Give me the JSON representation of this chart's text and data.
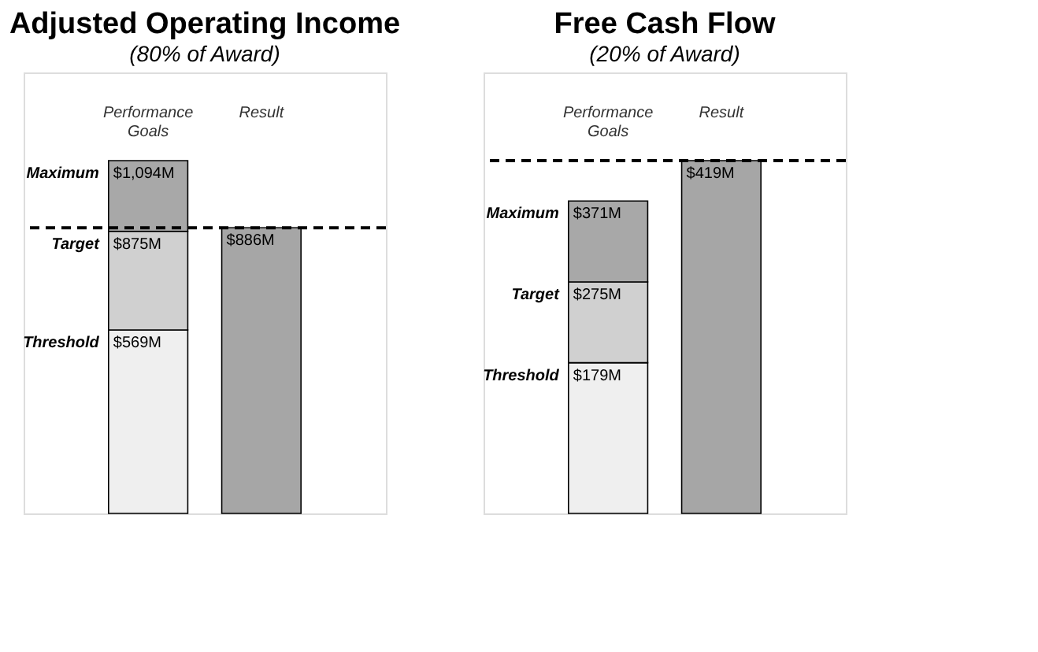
{
  "chart_data": [
    {
      "type": "bar",
      "title": "Adjusted Operating Income",
      "subtitle": "(80% of Award)",
      "categories": [
        "Performance Goals",
        "Result"
      ],
      "stacked": true,
      "legend": false,
      "grid": false,
      "series": [
        {
          "name": "Threshold",
          "color": "#efefef",
          "values": [
            569,
            null
          ],
          "value_labels": [
            "$569M",
            null
          ]
        },
        {
          "name": "Target",
          "color": "#d0d0d0",
          "values": [
            306,
            null
          ]
        },
        {
          "name": "Maximum",
          "color": "#a8a8a8",
          "values": [
            219,
            null
          ]
        },
        {
          "color": "#a6a6a6",
          "values": [
            null,
            886
          ],
          "value_labels": [
            null,
            "$886M"
          ]
        }
      ],
      "annotations": [
        {
          "text": "$875M",
          "x": "Performance Goals",
          "y": 875
        },
        {
          "text": "$1,094M",
          "x": "Performance Goals",
          "y": 1094
        }
      ],
      "ref_lines": [
        {
          "axis": "y",
          "value": 886,
          "line_style": "dashed",
          "color": "#000000"
        }
      ]
    },
    {
      "type": "bar",
      "title": "Free Cash Flow",
      "subtitle": "(20% of Award)",
      "categories": [
        "Performance Goals",
        "Result"
      ],
      "stacked": true,
      "legend": false,
      "grid": false,
      "series": [
        {
          "name": "Threshold",
          "color": "#efefef",
          "values": [
            179,
            null
          ],
          "value_labels": [
            "$179M",
            null
          ]
        },
        {
          "name": "Target",
          "color": "#d0d0d0",
          "values": [
            96,
            null
          ]
        },
        {
          "name": "Maximum",
          "color": "#a8a8a8",
          "values": [
            96,
            null
          ]
        },
        {
          "color": "#a6a6a6",
          "values": [
            null,
            419
          ],
          "value_labels": [
            null,
            "$419M"
          ]
        }
      ],
      "annotations": [
        {
          "text": "$275M",
          "x": "Performance Goals",
          "y": 275
        },
        {
          "text": "$371M",
          "x": "Performance Goals",
          "y": 371
        }
      ],
      "ref_lines": [
        {
          "axis": "y",
          "value": 419,
          "line_style": "dashed",
          "color": "#000000"
        }
      ]
    }
  ]
}
